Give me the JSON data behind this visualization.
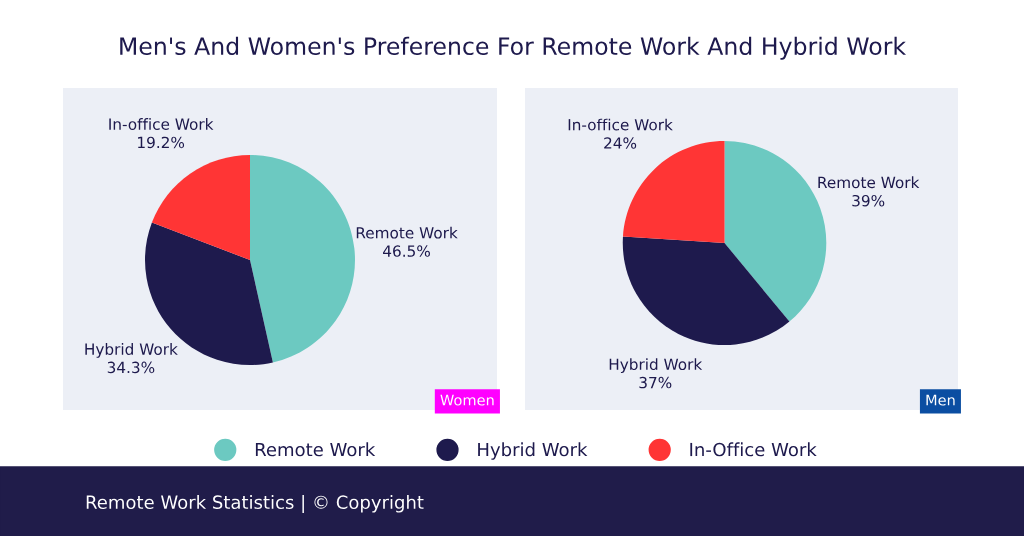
{
  "chart_data": [
    {
      "type": "pie",
      "title": "Men's And Women's Preference For Remote Work And Hybrid Work",
      "subtitle": "Women",
      "categories": [
        "Remote Work",
        "Hybrid Work",
        "In-Office Work"
      ],
      "values": [
        46.5,
        34.3,
        19.2
      ],
      "colors": [
        "#6cc9c1",
        "#1e1a4d",
        "#ff3535"
      ],
      "value_labels": [
        "Remote Work\n46.5%",
        "Hybrid Work\n34.3%",
        "In-office Work\n19.2%"
      ],
      "legend": "bottom",
      "annotations": [
        "Remote Work Statistics | © Copyright"
      ]
    },
    {
      "type": "pie",
      "subtitle": "Men",
      "categories": [
        "Remote Work",
        "Hybrid Work",
        "In-office Work"
      ],
      "values": [
        39,
        37,
        24
      ],
      "colors": [
        "#6cc9c1",
        "#1e1a4d",
        "#ff3535"
      ],
      "value_labels": [
        "39%",
        "37%",
        "24%"
      ]
    }
  ]
}
